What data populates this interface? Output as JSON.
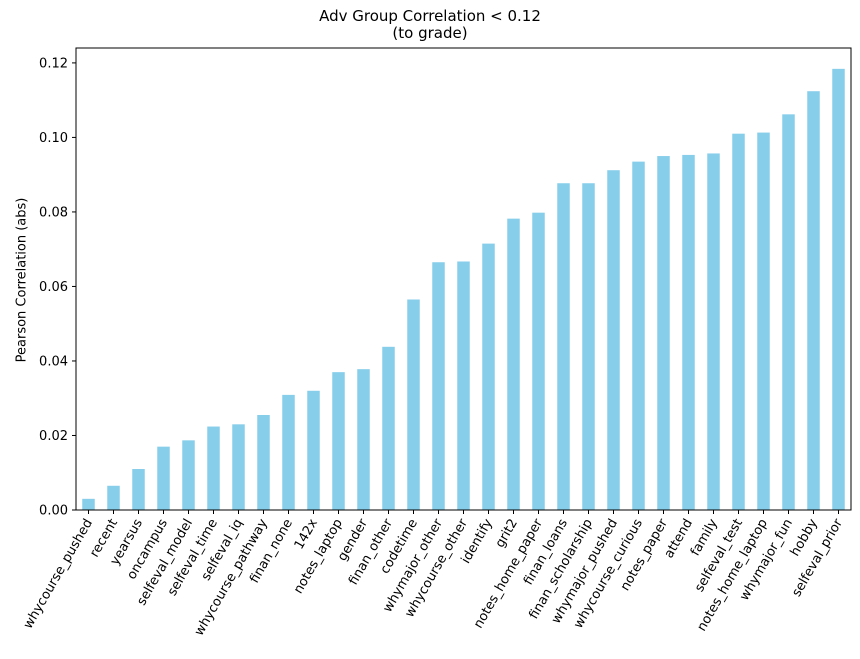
{
  "chart_data": {
    "type": "bar",
    "title": "Adv Group Correlation < 0.12",
    "subtitle": "(to grade)",
    "xlabel": "",
    "ylabel": "Pearson Correlation (abs)",
    "ylim": [
      0,
      0.124
    ],
    "yticks": [
      "0.00",
      "0.02",
      "0.04",
      "0.06",
      "0.08",
      "0.10",
      "0.12"
    ],
    "grid": false,
    "bar_color": "#87CEEB",
    "categories": [
      "whycourse_pushed",
      "recent",
      "yearsus",
      "oncampus",
      "selfeval_model",
      "selfeval_time",
      "selfeval_iq",
      "whycourse_pathway",
      "finan_none",
      "142x",
      "notes_laptop",
      "gender",
      "finan_other",
      "codetime",
      "whymajor_other",
      "whycourse_other",
      "identify",
      "grit2",
      "notes_home_paper",
      "finan_loans",
      "finan_scholarship",
      "whymajor_pushed",
      "whycourse_curious",
      "notes_paper",
      "attend",
      "family",
      "selfeval_test",
      "notes_home_laptop",
      "whymajor_fun",
      "hobby",
      "selfeval_prior"
    ],
    "values": [
      0.003,
      0.0065,
      0.011,
      0.017,
      0.0187,
      0.0224,
      0.023,
      0.0255,
      0.0309,
      0.032,
      0.037,
      0.0378,
      0.0438,
      0.0565,
      0.0665,
      0.0667,
      0.0715,
      0.0782,
      0.0798,
      0.0877,
      0.0877,
      0.0912,
      0.0935,
      0.095,
      0.0953,
      0.0957,
      0.101,
      0.1013,
      0.1062,
      0.1124,
      0.1184
    ]
  }
}
